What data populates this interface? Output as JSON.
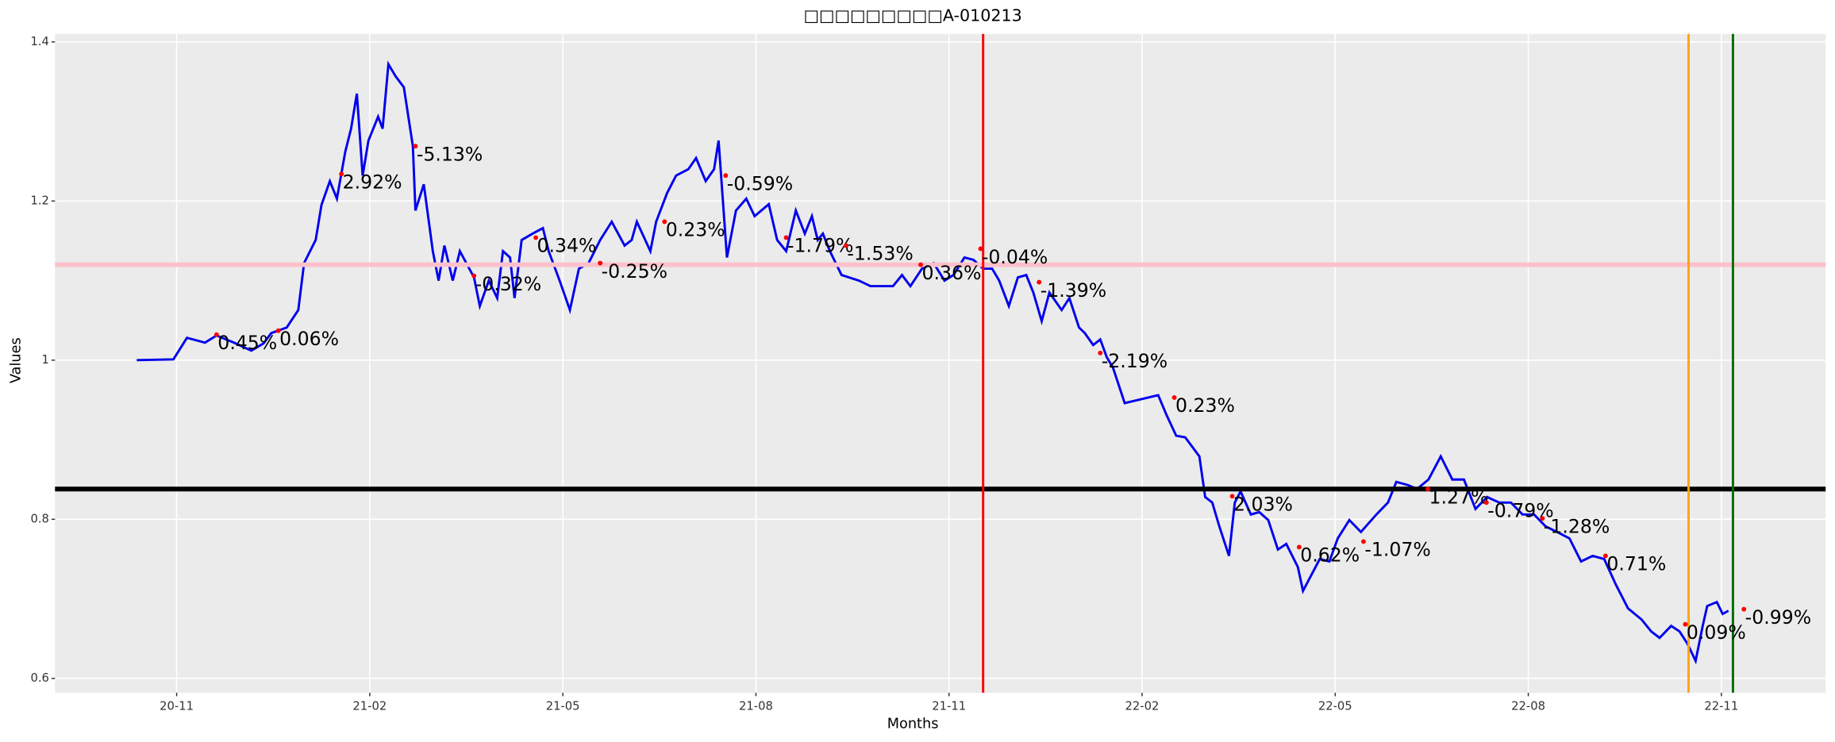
{
  "chart_data": {
    "type": "line",
    "title": "□□□□□□□□□A-010213",
    "x_label": "Months",
    "y_label": "Values",
    "xlim": [
      -1.89,
      25.62
    ],
    "xticks": [
      {
        "value": 0,
        "label": "20-11"
      },
      {
        "value": 3,
        "label": "21-02"
      },
      {
        "value": 6,
        "label": "21-05"
      },
      {
        "value": 9,
        "label": "21-08"
      },
      {
        "value": 12,
        "label": "21-11"
      },
      {
        "value": 15,
        "label": "22-02"
      },
      {
        "value": 18,
        "label": "22-05"
      },
      {
        "value": 21,
        "label": "22-08"
      },
      {
        "value": 24,
        "label": "22-11"
      }
    ],
    "ylim": [
      0.582,
      1.41
    ],
    "yticks": [
      0.6,
      0.8,
      1,
      1.2,
      1.4
    ],
    "grid": true,
    "series": [
      {
        "color": "#0000ee",
        "x": [
          -0.62,
          -0.05,
          0.16,
          0.44,
          0.62,
          0.89,
          1.16,
          1.35,
          1.47,
          1.71,
          1.89,
          1.98,
          2.16,
          2.25,
          2.38,
          2.49,
          2.62,
          2.71,
          2.8,
          2.89,
          2.98,
          3.13,
          3.2,
          3.29,
          3.4,
          3.53,
          3.67,
          3.71,
          3.84,
          3.98,
          4.07,
          4.16,
          4.29,
          4.4,
          4.62,
          4.71,
          4.85,
          4.98,
          5.07,
          5.18,
          5.25,
          5.36,
          5.53,
          5.69,
          5.78,
          5.95,
          6.11,
          6.25,
          6.4,
          6.58,
          6.76,
          6.96,
          7.07,
          7.15,
          7.36,
          7.45,
          7.62,
          7.76,
          7.95,
          8.07,
          8.22,
          8.35,
          8.42,
          8.55,
          8.69,
          8.85,
          8.98,
          9.2,
          9.33,
          9.47,
          9.62,
          9.76,
          9.87,
          9.96,
          10.04,
          10.15,
          10.33,
          10.6,
          10.78,
          10.87,
          10.98,
          11.13,
          11.27,
          11.4,
          11.58,
          11.76,
          11.93,
          12.07,
          12.24,
          12.38,
          12.53,
          12.67,
          12.78,
          12.93,
          13.07,
          13.2,
          13.31,
          13.44,
          13.56,
          13.75,
          13.87,
          14.02,
          14.11,
          14.24,
          14.35,
          14.45,
          14.55,
          14.73,
          15.25,
          15.38,
          15.53,
          15.67,
          15.89,
          15.98,
          16.09,
          16.2,
          16.35,
          16.44,
          16.53,
          16.69,
          16.82,
          16.96,
          17.11,
          17.24,
          17.42,
          17.5,
          17.76,
          17.91,
          18.04,
          18.22,
          18.4,
          18.64,
          18.82,
          18.95,
          19.13,
          19.27,
          19.45,
          19.64,
          19.82,
          20.0,
          20.18,
          20.36,
          20.55,
          20.73,
          20.91,
          21.09,
          21.27,
          21.45,
          21.64,
          21.82,
          22.0,
          22.18,
          22.36,
          22.55,
          22.76,
          22.91,
          23.04,
          23.22,
          23.35,
          23.47,
          23.6,
          23.71,
          23.78,
          23.93,
          24.02,
          24.11
        ],
        "values": [
          1.0,
          1.001,
          1.028,
          1.022,
          1.031,
          1.022,
          1.012,
          1.021,
          1.034,
          1.041,
          1.063,
          1.122,
          1.151,
          1.195,
          1.225,
          1.203,
          1.262,
          1.291,
          1.335,
          1.232,
          1.276,
          1.306,
          1.291,
          1.372,
          1.357,
          1.343,
          1.269,
          1.188,
          1.221,
          1.137,
          1.1,
          1.144,
          1.1,
          1.137,
          1.104,
          1.068,
          1.1,
          1.078,
          1.137,
          1.129,
          1.078,
          1.151,
          1.159,
          1.166,
          1.137,
          1.1,
          1.063,
          1.115,
          1.122,
          1.151,
          1.174,
          1.144,
          1.151,
          1.174,
          1.137,
          1.174,
          1.21,
          1.232,
          1.24,
          1.254,
          1.225,
          1.24,
          1.276,
          1.129,
          1.188,
          1.203,
          1.181,
          1.196,
          1.151,
          1.137,
          1.188,
          1.159,
          1.181,
          1.151,
          1.159,
          1.137,
          1.107,
          1.1,
          1.093,
          1.093,
          1.093,
          1.093,
          1.107,
          1.093,
          1.115,
          1.122,
          1.1,
          1.107,
          1.129,
          1.126,
          1.115,
          1.115,
          1.1,
          1.068,
          1.104,
          1.107,
          1.085,
          1.049,
          1.085,
          1.063,
          1.078,
          1.041,
          1.034,
          1.019,
          1.026,
          1.004,
          0.99,
          0.946,
          0.956,
          0.931,
          0.905,
          0.903,
          0.879,
          0.828,
          0.821,
          0.791,
          0.754,
          0.821,
          0.835,
          0.806,
          0.809,
          0.799,
          0.762,
          0.769,
          0.74,
          0.71,
          0.75,
          0.747,
          0.776,
          0.799,
          0.784,
          0.806,
          0.821,
          0.847,
          0.843,
          0.838,
          0.85,
          0.879,
          0.85,
          0.85,
          0.813,
          0.828,
          0.821,
          0.821,
          0.806,
          0.806,
          0.791,
          0.784,
          0.776,
          0.747,
          0.754,
          0.75,
          0.718,
          0.688,
          0.674,
          0.659,
          0.651,
          0.666,
          0.659,
          0.644,
          0.622,
          0.666,
          0.691,
          0.696,
          0.681,
          0.685
        ]
      }
    ],
    "annotations": [
      {
        "x": 0.62,
        "y": 1.032,
        "text": "0.45%"
      },
      {
        "x": 1.58,
        "y": 1.037,
        "text": "0.06%"
      },
      {
        "x": 2.56,
        "y": 1.234,
        "text": "2.92%"
      },
      {
        "x": 3.71,
        "y": 1.269,
        "text": "-5.13%"
      },
      {
        "x": 4.62,
        "y": 1.106,
        "text": "-0.32%"
      },
      {
        "x": 5.58,
        "y": 1.154,
        "text": "0.34%"
      },
      {
        "x": 6.58,
        "y": 1.122,
        "text": "-0.25%"
      },
      {
        "x": 7.58,
        "y": 1.174,
        "text": "0.23%"
      },
      {
        "x": 8.53,
        "y": 1.232,
        "text": "-0.59%"
      },
      {
        "x": 9.47,
        "y": 1.154,
        "text": "-1.79%"
      },
      {
        "x": 10.4,
        "y": 1.144,
        "text": "-1.53%"
      },
      {
        "x": 11.56,
        "y": 1.12,
        "text": "0.36%"
      },
      {
        "x": 12.49,
        "y": 1.14,
        "text": "-0.04%"
      },
      {
        "x": 13.4,
        "y": 1.098,
        "text": "-1.39%"
      },
      {
        "x": 14.35,
        "y": 1.009,
        "text": "-2.19%"
      },
      {
        "x": 15.5,
        "y": 0.953,
        "text": "0.23%"
      },
      {
        "x": 16.4,
        "y": 0.829,
        "text": "2.03%"
      },
      {
        "x": 17.44,
        "y": 0.765,
        "text": "0.62%"
      },
      {
        "x": 18.44,
        "y": 0.772,
        "text": "-1.07%"
      },
      {
        "x": 19.44,
        "y": 0.838,
        "text": "1.27%"
      },
      {
        "x": 20.35,
        "y": 0.821,
        "text": "-0.79%"
      },
      {
        "x": 21.22,
        "y": 0.801,
        "text": "-1.28%"
      },
      {
        "x": 22.2,
        "y": 0.754,
        "text": "0.71%"
      },
      {
        "x": 23.44,
        "y": 0.668,
        "text": "0.09%"
      },
      {
        "x": 24.35,
        "y": 0.687,
        "text": "-0.99%"
      }
    ],
    "annotation_color": "#ff0000",
    "hlines": [
      {
        "value": 1.12,
        "color": "#ffc0cb"
      },
      {
        "value": 0.838,
        "color": "#000000"
      }
    ],
    "vlines": [
      {
        "value": 12.53,
        "color": "#ff0000"
      },
      {
        "value": 23.49,
        "color": "#ffa500"
      },
      {
        "value": 24.18,
        "color": "#007000"
      }
    ]
  }
}
